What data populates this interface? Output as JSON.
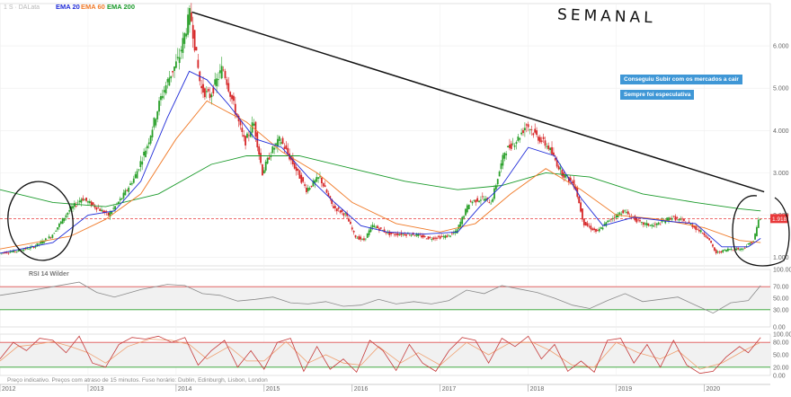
{
  "header": {
    "instrument": "1 S · DALata",
    "ema_labels": [
      "EMA 20",
      "EMA 60",
      "EMA 200"
    ],
    "ema_colors": [
      "#1f2bd8",
      "#f07a28",
      "#1a9a2a"
    ]
  },
  "annotations": {
    "handwritten_title": "SEMANAL",
    "callout_1": "Conseguiu Subir com os mercados a cair",
    "callout_2": "Sempre foi especulativa",
    "last_price_tag": "1.918"
  },
  "footer": {
    "disclaimer": "Preço indicativo. Preços com atraso de 15 minutos. Fuso horário: Dublin, Edinburgh, Lisbon, London"
  },
  "chart_data": [
    {
      "type": "line",
      "name": "price",
      "price_series": [
        [
          2012.0,
          1.1
        ],
        [
          2012.2,
          1.15
        ],
        [
          2012.4,
          1.25
        ],
        [
          2012.6,
          1.5
        ],
        [
          2012.8,
          2.1
        ],
        [
          2012.95,
          2.4
        ],
        [
          2013.1,
          2.2
        ],
        [
          2013.25,
          2.0
        ],
        [
          2013.4,
          2.4
        ],
        [
          2013.55,
          2.9
        ],
        [
          2013.7,
          3.7
        ],
        [
          2013.85,
          4.8
        ],
        [
          2013.95,
          5.3
        ],
        [
          2014.05,
          5.7
        ],
        [
          2014.12,
          6.3
        ],
        [
          2014.18,
          6.8
        ],
        [
          2014.3,
          5.0
        ],
        [
          2014.4,
          4.8
        ],
        [
          2014.55,
          5.5
        ],
        [
          2014.7,
          4.4
        ],
        [
          2014.8,
          3.7
        ],
        [
          2014.9,
          4.2
        ],
        [
          2015.0,
          3.0
        ],
        [
          2015.1,
          3.5
        ],
        [
          2015.2,
          3.8
        ],
        [
          2015.35,
          3.2
        ],
        [
          2015.5,
          2.6
        ],
        [
          2015.65,
          2.9
        ],
        [
          2015.8,
          2.2
        ],
        [
          2015.95,
          2.0
        ],
        [
          2016.05,
          1.5
        ],
        [
          2016.15,
          1.4
        ],
        [
          2016.25,
          1.75
        ],
        [
          2016.45,
          1.55
        ],
        [
          2016.7,
          1.55
        ],
        [
          2016.9,
          1.45
        ],
        [
          2017.1,
          1.5
        ],
        [
          2017.2,
          1.6
        ],
        [
          2017.35,
          2.3
        ],
        [
          2017.5,
          2.4
        ],
        [
          2017.6,
          2.3
        ],
        [
          2017.75,
          3.5
        ],
        [
          2017.9,
          3.8
        ],
        [
          2018.0,
          4.15
        ],
        [
          2018.1,
          3.9
        ],
        [
          2018.25,
          3.6
        ],
        [
          2018.4,
          3.0
        ],
        [
          2018.55,
          2.7
        ],
        [
          2018.65,
          1.8
        ],
        [
          2018.8,
          1.6
        ],
        [
          2018.95,
          1.9
        ],
        [
          2019.1,
          2.1
        ],
        [
          2019.3,
          1.8
        ],
        [
          2019.45,
          1.75
        ],
        [
          2019.65,
          1.95
        ],
        [
          2019.85,
          1.8
        ],
        [
          2020.05,
          1.5
        ],
        [
          2020.15,
          1.1
        ],
        [
          2020.3,
          1.2
        ],
        [
          2020.45,
          1.2
        ],
        [
          2020.58,
          1.4
        ],
        [
          2020.64,
          1.92
        ]
      ],
      "ema20": [
        [
          2012.0,
          1.1
        ],
        [
          2012.6,
          1.35
        ],
        [
          2013.0,
          2.0
        ],
        [
          2013.3,
          2.1
        ],
        [
          2013.6,
          2.8
        ],
        [
          2013.9,
          4.3
        ],
        [
          2014.15,
          5.4
        ],
        [
          2014.35,
          5.2
        ],
        [
          2014.6,
          4.6
        ],
        [
          2014.9,
          3.8
        ],
        [
          2015.2,
          3.6
        ],
        [
          2015.5,
          2.9
        ],
        [
          2015.8,
          2.3
        ],
        [
          2016.1,
          1.75
        ],
        [
          2016.4,
          1.6
        ],
        [
          2016.8,
          1.55
        ],
        [
          2017.2,
          1.6
        ],
        [
          2017.45,
          2.2
        ],
        [
          2017.7,
          2.7
        ],
        [
          2018.0,
          3.6
        ],
        [
          2018.3,
          3.4
        ],
        [
          2018.6,
          2.4
        ],
        [
          2018.85,
          1.75
        ],
        [
          2019.2,
          1.95
        ],
        [
          2019.6,
          1.85
        ],
        [
          2019.9,
          1.8
        ],
        [
          2020.2,
          1.25
        ],
        [
          2020.5,
          1.25
        ],
        [
          2020.64,
          1.45
        ]
      ],
      "ema60": [
        [
          2012.0,
          1.2
        ],
        [
          2012.8,
          1.5
        ],
        [
          2013.2,
          1.9
        ],
        [
          2013.6,
          2.5
        ],
        [
          2014.0,
          3.8
        ],
        [
          2014.35,
          4.7
        ],
        [
          2014.8,
          4.2
        ],
        [
          2015.2,
          3.5
        ],
        [
          2015.6,
          3.0
        ],
        [
          2016.0,
          2.3
        ],
        [
          2016.5,
          1.8
        ],
        [
          2017.0,
          1.6
        ],
        [
          2017.4,
          1.8
        ],
        [
          2017.8,
          2.5
        ],
        [
          2018.2,
          3.1
        ],
        [
          2018.6,
          2.6
        ],
        [
          2019.0,
          2.0
        ],
        [
          2019.5,
          1.9
        ],
        [
          2020.0,
          1.7
        ],
        [
          2020.4,
          1.4
        ],
        [
          2020.64,
          1.35
        ]
      ],
      "ema200": [
        [
          2012.0,
          2.6
        ],
        [
          2012.6,
          2.3
        ],
        [
          2013.2,
          2.2
        ],
        [
          2013.8,
          2.5
        ],
        [
          2014.4,
          3.2
        ],
        [
          2014.8,
          3.4
        ],
        [
          2015.4,
          3.4
        ],
        [
          2016.0,
          3.1
        ],
        [
          2016.6,
          2.8
        ],
        [
          2017.2,
          2.6
        ],
        [
          2017.7,
          2.7
        ],
        [
          2018.2,
          3.0
        ],
        [
          2018.7,
          2.9
        ],
        [
          2019.3,
          2.5
        ],
        [
          2019.9,
          2.3
        ],
        [
          2020.4,
          2.15
        ],
        [
          2020.64,
          2.1
        ]
      ],
      "trendline": [
        [
          2014.18,
          6.8
        ],
        [
          2020.68,
          2.55
        ]
      ],
      "reference_level": 1.918,
      "y_ticks": [
        1,
        2,
        3,
        4,
        5,
        6
      ],
      "y_tick_labels": [
        "1.000",
        "2.000",
        "3.000",
        "4.000",
        "5.000",
        "6.000"
      ],
      "ylim": [
        0.8,
        7.0
      ],
      "xlim": [
        2012.0,
        2020.75
      ],
      "x_ticks": [
        2012,
        2013,
        2014,
        2015,
        2016,
        2017,
        2018,
        2019,
        2020
      ],
      "x_tick_labels": [
        "2012",
        "2013",
        "2014",
        "2015",
        "2016",
        "2017",
        "2018",
        "2019",
        "2020"
      ]
    },
    {
      "type": "line",
      "name": "RSI 14 Wilder",
      "ylim": [
        0,
        100
      ],
      "y_ticks": [
        0,
        30,
        50,
        70,
        100
      ],
      "y_tick_labels": [
        "0.00",
        "30.00",
        "50.00",
        "70.00",
        "100.00"
      ],
      "overbought": 70,
      "oversold": 30,
      "values": [
        [
          2012.0,
          55
        ],
        [
          2012.3,
          62
        ],
        [
          2012.6,
          70
        ],
        [
          2012.9,
          78
        ],
        [
          2013.1,
          60
        ],
        [
          2013.3,
          52
        ],
        [
          2013.6,
          65
        ],
        [
          2013.9,
          74
        ],
        [
          2014.1,
          72
        ],
        [
          2014.3,
          58
        ],
        [
          2014.5,
          55
        ],
        [
          2014.7,
          45
        ],
        [
          2014.9,
          48
        ],
        [
          2015.1,
          52
        ],
        [
          2015.3,
          42
        ],
        [
          2015.5,
          40
        ],
        [
          2015.7,
          44
        ],
        [
          2015.9,
          36
        ],
        [
          2016.1,
          38
        ],
        [
          2016.3,
          48
        ],
        [
          2016.5,
          40
        ],
        [
          2016.7,
          44
        ],
        [
          2016.9,
          40
        ],
        [
          2017.1,
          46
        ],
        [
          2017.3,
          64
        ],
        [
          2017.5,
          58
        ],
        [
          2017.7,
          72
        ],
        [
          2017.9,
          66
        ],
        [
          2018.1,
          60
        ],
        [
          2018.3,
          50
        ],
        [
          2018.5,
          38
        ],
        [
          2018.7,
          32
        ],
        [
          2018.9,
          46
        ],
        [
          2019.1,
          58
        ],
        [
          2019.3,
          44
        ],
        [
          2019.5,
          48
        ],
        [
          2019.7,
          52
        ],
        [
          2019.9,
          38
        ],
        [
          2020.1,
          24
        ],
        [
          2020.3,
          42
        ],
        [
          2020.5,
          46
        ],
        [
          2020.64,
          72
        ]
      ]
    },
    {
      "type": "line",
      "name": "Stochastic",
      "ylim": [
        0,
        100
      ],
      "y_ticks": [
        0,
        20,
        50,
        80,
        100
      ],
      "y_tick_labels": [
        "0.00",
        "20.00",
        "50.00",
        "80.00",
        "100.00"
      ],
      "upper": 80,
      "lower": 20,
      "values": [
        [
          2012.0,
          40
        ],
        [
          2012.15,
          80
        ],
        [
          2012.3,
          60
        ],
        [
          2012.45,
          90
        ],
        [
          2012.6,
          85
        ],
        [
          2012.75,
          55
        ],
        [
          2012.9,
          95
        ],
        [
          2013.05,
          30
        ],
        [
          2013.2,
          20
        ],
        [
          2013.35,
          75
        ],
        [
          2013.5,
          92
        ],
        [
          2013.65,
          88
        ],
        [
          2013.8,
          95
        ],
        [
          2013.95,
          80
        ],
        [
          2014.1,
          92
        ],
        [
          2014.25,
          25
        ],
        [
          2014.4,
          60
        ],
        [
          2014.55,
          85
        ],
        [
          2014.7,
          20
        ],
        [
          2014.85,
          60
        ],
        [
          2015.0,
          15
        ],
        [
          2015.15,
          80
        ],
        [
          2015.3,
          90
        ],
        [
          2015.45,
          10
        ],
        [
          2015.6,
          70
        ],
        [
          2015.75,
          15
        ],
        [
          2015.9,
          40
        ],
        [
          2016.05,
          8
        ],
        [
          2016.2,
          85
        ],
        [
          2016.35,
          60
        ],
        [
          2016.5,
          12
        ],
        [
          2016.65,
          75
        ],
        [
          2016.8,
          30
        ],
        [
          2016.95,
          10
        ],
        [
          2017.1,
          60
        ],
        [
          2017.25,
          92
        ],
        [
          2017.4,
          85
        ],
        [
          2017.55,
          30
        ],
        [
          2017.7,
          90
        ],
        [
          2017.85,
          70
        ],
        [
          2018.0,
          95
        ],
        [
          2018.15,
          40
        ],
        [
          2018.3,
          75
        ],
        [
          2018.45,
          10
        ],
        [
          2018.6,
          35
        ],
        [
          2018.75,
          8
        ],
        [
          2018.9,
          85
        ],
        [
          2019.05,
          90
        ],
        [
          2019.2,
          30
        ],
        [
          2019.35,
          75
        ],
        [
          2019.5,
          20
        ],
        [
          2019.65,
          85
        ],
        [
          2019.8,
          25
        ],
        [
          2019.95,
          5
        ],
        [
          2020.1,
          10
        ],
        [
          2020.25,
          45
        ],
        [
          2020.4,
          70
        ],
        [
          2020.5,
          55
        ],
        [
          2020.64,
          92
        ]
      ],
      "signal": [
        [
          2012.0,
          35
        ],
        [
          2012.2,
          70
        ],
        [
          2012.4,
          75
        ],
        [
          2012.6,
          82
        ],
        [
          2012.8,
          70
        ],
        [
          2013.0,
          55
        ],
        [
          2013.2,
          30
        ],
        [
          2013.45,
          70
        ],
        [
          2013.7,
          88
        ],
        [
          2013.95,
          85
        ],
        [
          2014.15,
          75
        ],
        [
          2014.35,
          40
        ],
        [
          2014.6,
          70
        ],
        [
          2014.8,
          35
        ],
        [
          2015.0,
          35
        ],
        [
          2015.25,
          82
        ],
        [
          2015.5,
          30
        ],
        [
          2015.7,
          50
        ],
        [
          2015.9,
          30
        ],
        [
          2016.1,
          25
        ],
        [
          2016.3,
          70
        ],
        [
          2016.55,
          30
        ],
        [
          2016.75,
          55
        ],
        [
          2017.0,
          25
        ],
        [
          2017.3,
          80
        ],
        [
          2017.55,
          50
        ],
        [
          2017.8,
          80
        ],
        [
          2018.05,
          80
        ],
        [
          2018.25,
          60
        ],
        [
          2018.5,
          25
        ],
        [
          2018.75,
          20
        ],
        [
          2019.0,
          80
        ],
        [
          2019.25,
          55
        ],
        [
          2019.5,
          40
        ],
        [
          2019.7,
          60
        ],
        [
          2019.95,
          15
        ],
        [
          2020.2,
          30
        ],
        [
          2020.45,
          60
        ],
        [
          2020.64,
          80
        ]
      ]
    }
  ]
}
